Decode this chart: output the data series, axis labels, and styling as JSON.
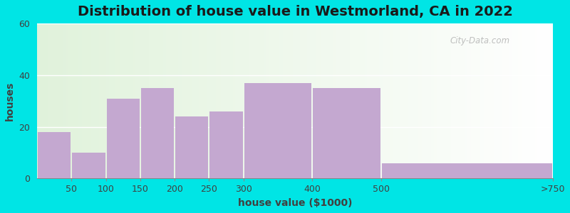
{
  "title": "Distribution of house value in Westmorland, CA in 2022",
  "xlabel": "house value ($1000)",
  "ylabel": "houses",
  "categories": [
    "50",
    "100",
    "150",
    "200",
    "250",
    "300",
    "400",
    "500",
    ">750"
  ],
  "values": [
    18,
    10,
    31,
    35,
    24,
    26,
    37,
    35,
    6
  ],
  "bar_color": "#c4a8d0",
  "bar_edgecolor": "#c4a8d0",
  "background_outer": "#00e5e5",
  "ylim": [
    0,
    60
  ],
  "yticks": [
    0,
    20,
    40,
    60
  ],
  "title_fontsize": 14,
  "label_fontsize": 10,
  "tick_fontsize": 9,
  "watermark": "City-Data.com",
  "bar_left_edges": [
    0,
    50,
    100,
    150,
    200,
    250,
    300,
    400,
    500
  ],
  "bar_widths": [
    50,
    50,
    50,
    50,
    50,
    50,
    100,
    100,
    250
  ],
  "tick_positions": [
    50,
    100,
    150,
    200,
    250,
    300,
    400,
    500,
    750
  ]
}
